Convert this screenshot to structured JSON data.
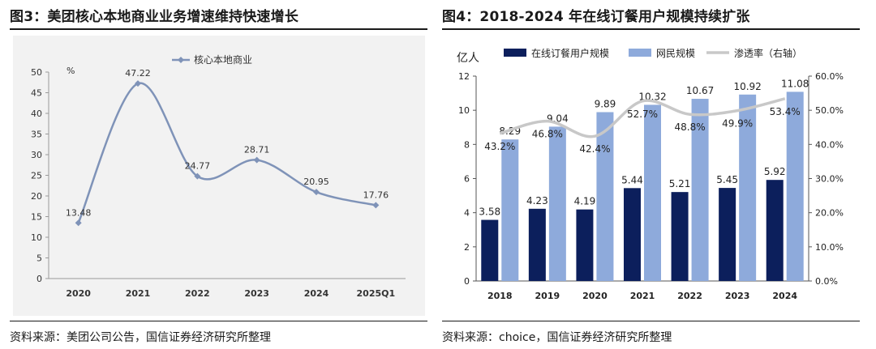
{
  "left_panel": {
    "title": "图3：美团核心本地商业业务增速维持快速增长",
    "source": "资料来源：美团公司公告，国信证券经济研究所整理"
  },
  "right_panel": {
    "title": "图4：2018-2024 年在线订餐用户规模持续扩张",
    "source": "资料来源：choice，国信证券经济研究所整理"
  },
  "chart_data": [
    {
      "type": "line",
      "title": "",
      "ylabel": "%",
      "xlabel": "",
      "categories": [
        "2020",
        "2021",
        "2022",
        "2023",
        "2024",
        "2025Q1"
      ],
      "series": [
        {
          "name": "核心本地商业",
          "values": [
            13.48,
            47.22,
            24.77,
            28.71,
            20.95,
            17.76
          ],
          "color": "#7f93b8"
        }
      ],
      "ylim": [
        0,
        50
      ],
      "yticks": [
        0,
        5,
        10,
        15,
        20,
        25,
        30,
        35,
        40,
        45,
        50
      ],
      "legend": "top-center",
      "grid": false,
      "background": "#f2f2f2"
    },
    {
      "type": "bar",
      "title": "",
      "ylabel": "亿人",
      "xlabel": "",
      "categories": [
        "2018",
        "2019",
        "2020",
        "2021",
        "2022",
        "2023",
        "2024"
      ],
      "series": [
        {
          "name": "在线订餐用户规模",
          "values": [
            3.58,
            4.23,
            4.19,
            5.44,
            5.21,
            5.45,
            5.92
          ],
          "color": "#0c1f5c",
          "labels": [
            "3.58",
            "4.23",
            "4.19",
            "5.44",
            "5.21",
            "5.45",
            "5.92"
          ]
        },
        {
          "name": "网民规模",
          "values": [
            8.29,
            9.04,
            9.89,
            10.32,
            10.67,
            10.92,
            11.08
          ],
          "color": "#8eaadb",
          "labels": [
            "8.29",
            "9.04",
            "9.89",
            "10.32",
            "10.67",
            "10.92",
            "11.08"
          ]
        },
        {
          "name": "渗透率（右轴）",
          "type": "line",
          "axis": "right",
          "values": [
            43.2,
            46.8,
            42.4,
            52.7,
            48.8,
            49.9,
            53.4
          ],
          "color": "#c8c8c8",
          "labels": [
            "43.2%",
            "46.8%",
            "42.4%",
            "52.7%",
            "48.8%",
            "49.9%",
            "53.4%"
          ]
        }
      ],
      "ylim": [
        0,
        12
      ],
      "yticks": [
        0,
        2,
        4,
        6,
        8,
        10,
        12
      ],
      "y2lim": [
        0,
        60
      ],
      "y2ticks": [
        "0.0%",
        "10.0%",
        "20.0%",
        "30.0%",
        "40.0%",
        "50.0%",
        "60.0%"
      ],
      "legend": "top",
      "grid": false
    }
  ]
}
